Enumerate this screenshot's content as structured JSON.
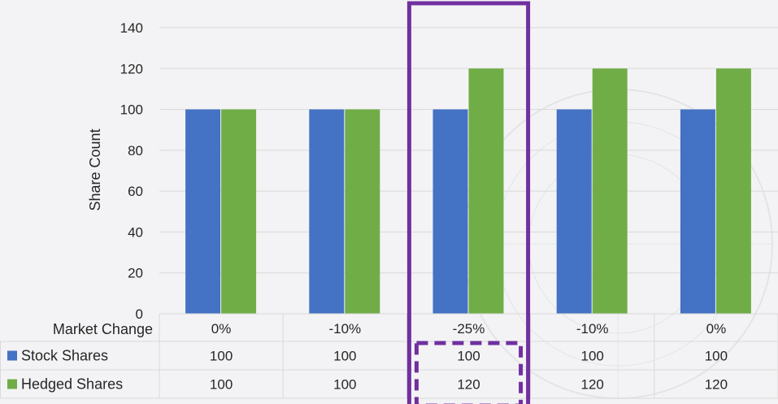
{
  "colors": {
    "stock": "#4472c4",
    "hedged": "#70ad47",
    "highlight": "#7030a0",
    "grid": "#d9d9d9",
    "text": "#262626"
  },
  "chart_data": {
    "type": "bar",
    "ylabel": "Share Count",
    "ylim": [
      0,
      140
    ],
    "yticks": [
      0,
      20,
      40,
      60,
      80,
      100,
      120,
      140
    ],
    "grid": true,
    "data_table": true,
    "categories": [
      "0%",
      "-10%",
      "-25%",
      "-10%",
      "0%"
    ],
    "category_row_label": "Market Change",
    "series": [
      {
        "name": "Stock Shares",
        "values": [
          100,
          100,
          100,
          100,
          100
        ],
        "color": "#4472c4"
      },
      {
        "name": "Hedged Shares",
        "values": [
          100,
          100,
          120,
          120,
          120
        ],
        "color": "#70ad47"
      }
    ],
    "highlight_category_index": 2
  }
}
